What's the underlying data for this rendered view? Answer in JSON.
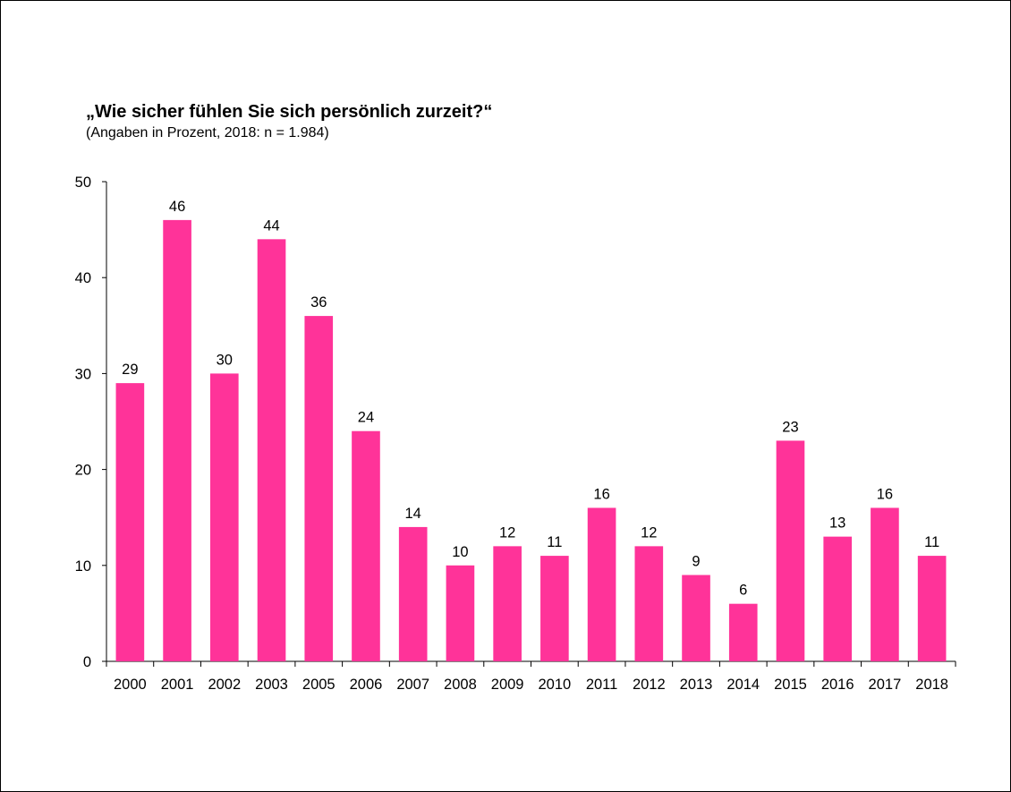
{
  "chart_data": {
    "type": "bar",
    "title": "„Wie sicher fühlen Sie sich persönlich zurzeit?“",
    "subtitle": "(Angaben in Prozent, 2018: n = 1.984)",
    "categories": [
      "2000",
      "2001",
      "2002",
      "2003",
      "2005",
      "2006",
      "2007",
      "2008",
      "2009",
      "2010",
      "2011",
      "2012",
      "2013",
      "2014",
      "2015",
      "2016",
      "2017",
      "2018"
    ],
    "values": [
      29,
      46,
      30,
      44,
      36,
      24,
      14,
      10,
      12,
      11,
      16,
      12,
      9,
      6,
      23,
      13,
      16,
      11
    ],
    "value_labels": [
      "29",
      "46",
      "30",
      "44",
      "36",
      "24",
      "14",
      "10",
      "12",
      "11",
      "16",
      "12",
      "9",
      "6",
      "23",
      "13",
      "16",
      "11"
    ],
    "ylim": [
      0,
      50
    ],
    "yticks": [
      "0",
      "10",
      "20",
      "30",
      "40",
      "50"
    ],
    "grid": false,
    "legend": "none",
    "bar_color": "#ff3399"
  }
}
